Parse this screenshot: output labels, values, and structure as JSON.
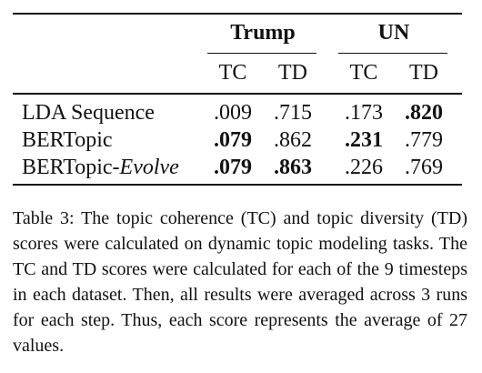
{
  "table": {
    "groups": [
      {
        "label": "Trump",
        "cols": [
          "TC",
          "TD"
        ]
      },
      {
        "label": "UN",
        "cols": [
          "TC",
          "TD"
        ]
      }
    ],
    "rows": [
      {
        "label": "LDA Sequence",
        "label_main": "LDA Sequence",
        "label_italic": "",
        "values": [
          ".009",
          ".715",
          ".173",
          ".820"
        ],
        "bold": [
          false,
          false,
          false,
          true
        ]
      },
      {
        "label": "BERTopic",
        "label_main": "BERTopic",
        "label_italic": "",
        "values": [
          ".079",
          ".862",
          ".231",
          ".779"
        ],
        "bold": [
          true,
          false,
          true,
          false
        ]
      },
      {
        "label": "BERTopic-Evolve",
        "label_main": "BERTopic-",
        "label_italic": "Evolve",
        "values": [
          ".079",
          ".863",
          ".226",
          ".769"
        ],
        "bold": [
          true,
          true,
          false,
          false
        ]
      }
    ]
  },
  "caption": "Table 3: The topic coherence (TC) and topic diversity (TD) scores were calculated on dynamic topic modeling tasks. The TC and TD scores were calculated for each of the 9 timesteps in each dataset. Then, all results were averaged across 3 runs for each step. Thus, each score represents the average of 27 values."
}
